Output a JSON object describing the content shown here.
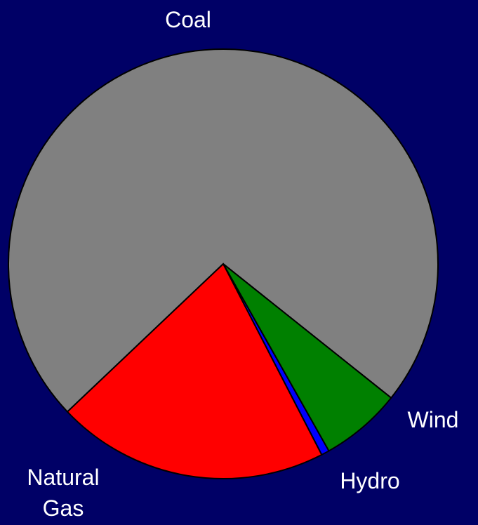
{
  "chart_data": {
    "type": "pie",
    "categories": [
      "Coal",
      "Wind",
      "Hydro",
      "Natural Gas"
    ],
    "values": [
      72.8,
      6.1,
      0.6,
      20.5
    ],
    "colors": [
      "#808080",
      "#008000",
      "#0000ff",
      "#ff0000"
    ]
  }
}
